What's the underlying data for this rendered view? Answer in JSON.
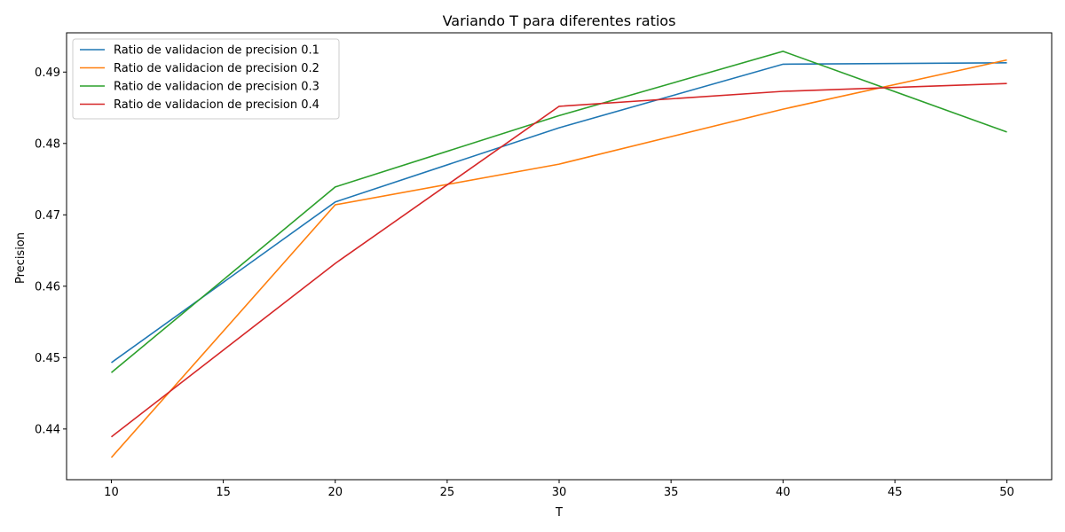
{
  "chart_data": {
    "type": "line",
    "title": "Variando T para diferentes ratios",
    "xlabel": "T",
    "ylabel": "Precision",
    "x": [
      10,
      20,
      30,
      40,
      50
    ],
    "xlim": [
      8,
      52
    ],
    "ylim": [
      0.4329,
      0.4955
    ],
    "xticks": [
      10,
      15,
      20,
      25,
      30,
      35,
      40,
      45,
      50
    ],
    "yticks": [
      0.44,
      0.45,
      0.46,
      0.47,
      0.48,
      0.49
    ],
    "grid": false,
    "legend_position": "top-left",
    "series": [
      {
        "name": "Ratio de validacion de precision 0.1",
        "color": "#1f77b4",
        "values": [
          0.4493,
          0.4718,
          0.4822,
          0.4911,
          0.4913
        ]
      },
      {
        "name": "Ratio de validacion de precision 0.2",
        "color": "#ff7f0e",
        "values": [
          0.436,
          0.4714,
          0.4771,
          0.4848,
          0.4917
        ]
      },
      {
        "name": "Ratio de validacion de precision 0.3",
        "color": "#2ca02c",
        "values": [
          0.4479,
          0.4739,
          0.4839,
          0.4929,
          0.4816
        ]
      },
      {
        "name": "Ratio de validacion de precision 0.4",
        "color": "#d62728",
        "values": [
          0.4389,
          0.4632,
          0.4852,
          0.4873,
          0.4884
        ]
      }
    ]
  }
}
